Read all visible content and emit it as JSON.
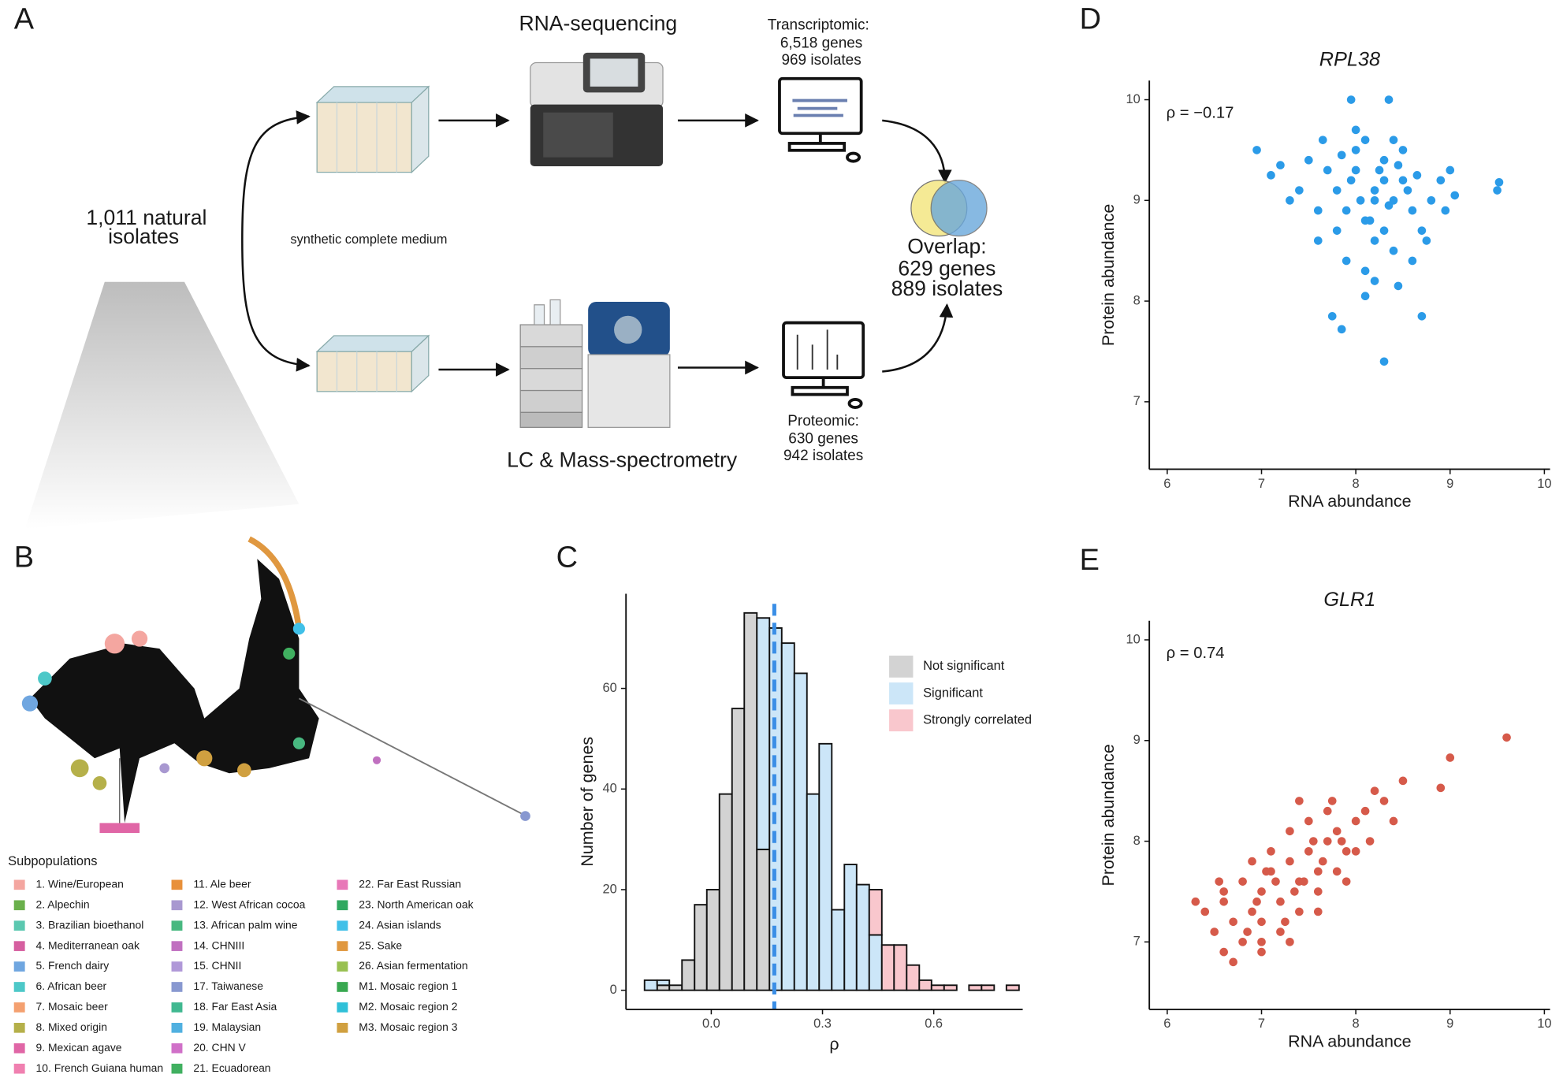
{
  "panels": [
    "A",
    "B",
    "C",
    "D",
    "E"
  ],
  "workflow": {
    "rna_title": "RNA-sequencing",
    "transcriptomic": [
      "Transcriptomic:",
      "6,518 genes",
      "969 isolates"
    ],
    "isolates": [
      "1,011 natural",
      "isolates"
    ],
    "medium": "synthetic complete medium",
    "overlap": [
      "Overlap:",
      "629 genes",
      "889 isolates"
    ],
    "ms_title": "LC & Mass-spectrometry",
    "proteomic": [
      "Proteomic:",
      "630 genes",
      "942 isolates"
    ]
  },
  "tree_legend": {
    "title": "Subpopulations",
    "items": [
      {
        "label": "1. Wine/European",
        "color": "#f4a6a0"
      },
      {
        "label": "2. Alpechin",
        "color": "#6ab04c"
      },
      {
        "label": "3. Brazilian bioethanol",
        "color": "#5bc8b0"
      },
      {
        "label": "4. Mediterranean oak",
        "color": "#d65fa0"
      },
      {
        "label": "5. French dairy",
        "color": "#6fa6e0"
      },
      {
        "label": "6. African beer",
        "color": "#4dc8c8"
      },
      {
        "label": "7. Mosaic beer",
        "color": "#f4a070"
      },
      {
        "label": "8. Mixed origin",
        "color": "#b5b04a"
      },
      {
        "label": "9. Mexican agave",
        "color": "#e066a6"
      },
      {
        "label": "10. French Guiana human",
        "color": "#f080b0"
      },
      {
        "label": "11. Ale beer",
        "color": "#e8903a"
      },
      {
        "label": "12. West African cocoa",
        "color": "#a898d0"
      },
      {
        "label": "13. African palm wine",
        "color": "#48b880"
      },
      {
        "label": "14. CHNIII",
        "color": "#c070c0"
      },
      {
        "label": "15. CHNII",
        "color": "#b098d8"
      },
      {
        "label": "17. Taiwanese",
        "color": "#8898d0"
      },
      {
        "label": "18. Far East Asia",
        "color": "#40b890"
      },
      {
        "label": "19. Malaysian",
        "color": "#50b0e0"
      },
      {
        "label": "20. CHN V",
        "color": "#d070c8"
      },
      {
        "label": "21. Ecuadorean",
        "color": "#40b060"
      },
      {
        "label": "22. Far East Russian",
        "color": "#e878b8"
      },
      {
        "label": "23. North American oak",
        "color": "#30a860"
      },
      {
        "label": "24. Asian islands",
        "color": "#40c0e8"
      },
      {
        "label": "25. Sake",
        "color": "#e09840"
      },
      {
        "label": "26. Asian fermentation",
        "color": "#98c050"
      },
      {
        "label": "M1. Mosaic region 1",
        "color": "#38a850"
      },
      {
        "label": "M2. Mosaic region 2",
        "color": "#30c0d8"
      },
      {
        "label": "M3. Mosaic region 3",
        "color": "#d0a040"
      }
    ]
  },
  "chart_data": [
    {
      "type": "histogram",
      "xlabel": "ρ",
      "ylabel": "Number of genes",
      "bins": [
        -0.18,
        -0.146,
        -0.113,
        -0.079,
        -0.045,
        -0.012,
        0.022,
        0.056,
        0.089,
        0.123,
        0.157,
        0.19,
        0.224,
        0.258,
        0.291,
        0.325,
        0.359,
        0.392,
        0.426,
        0.46,
        0.493,
        0.527,
        0.561,
        0.594,
        0.628,
        0.662,
        0.695,
        0.729,
        0.763,
        0.796,
        0.83
      ],
      "series": [
        {
          "name": "Not significant",
          "color": "#d3d3d3",
          "values": [
            0,
            1,
            1,
            6,
            17,
            20,
            39,
            56,
            75,
            28,
            0,
            0,
            0,
            0,
            0,
            0,
            0,
            0,
            0,
            0,
            0,
            0,
            0,
            0,
            0,
            0,
            0,
            0,
            0,
            0
          ]
        },
        {
          "name": "Significant",
          "color": "#cce6f8",
          "values": [
            2,
            1,
            0,
            0,
            0,
            0,
            0,
            0,
            0,
            46,
            72,
            69,
            63,
            39,
            49,
            16,
            25,
            21,
            11,
            0,
            0,
            0,
            0,
            0,
            0,
            0,
            0,
            0,
            0,
            0
          ]
        },
        {
          "name": "Strongly correlated",
          "color": "#f9c7cd",
          "values": [
            0,
            0,
            0,
            0,
            0,
            0,
            0,
            0,
            0,
            0,
            0,
            0,
            0,
            0,
            0,
            0,
            0,
            0,
            9,
            9,
            9,
            5,
            2,
            1,
            1,
            0,
            1,
            1,
            0,
            1
          ]
        }
      ],
      "vline": 0.17,
      "vline_color": "#3a8ee6",
      "xlim": [
        -0.23,
        0.84
      ],
      "ylim": [
        -3.8,
        78.8
      ],
      "xticks": [
        {
          "value": 0,
          "label": "0.0"
        },
        {
          "value": 0.3,
          "label": "0.3"
        },
        {
          "value": 0.6,
          "label": "0.6"
        }
      ],
      "yticks": [
        0,
        20,
        40,
        60
      ],
      "legend": "right"
    },
    {
      "type": "scatter",
      "title": "RPL38",
      "annotation": "ρ = −0.17",
      "xlabel": "RNA abundance",
      "ylabel": "Protein abundance",
      "color": "#2b9be8",
      "x": [
        8.2,
        8.0,
        8.4,
        7.9,
        8.3,
        8.1,
        8.5,
        7.8,
        8.6,
        8.2,
        7.7,
        8.8,
        8.0,
        8.3,
        7.6,
        8.9,
        8.1,
        8.4,
        7.5,
        8.7,
        8.2,
        7.9,
        8.5,
        8.0,
        8.3,
        7.4,
        9.0,
        8.6,
        7.8,
        8.1,
        8.4,
        8.2,
        7.3,
        8.95,
        8.05,
        8.55,
        7.65,
        8.25,
        8.75,
        7.95,
        8.15,
        8.45,
        7.85,
        8.35,
        8.65,
        9.5,
        9.52,
        8.3,
        7.75,
        7.85,
        8.7,
        7.95,
        8.35,
        7.1,
        6.95,
        7.2,
        9.05,
        8.1,
        8.45,
        7.6
      ],
      "y": [
        9.1,
        9.3,
        9.0,
        8.9,
        9.4,
        8.8,
        9.2,
        9.1,
        8.9,
        8.6,
        9.3,
        9.0,
        9.5,
        8.7,
        8.9,
        9.2,
        9.6,
        8.5,
        9.4,
        8.7,
        9.0,
        8.4,
        9.5,
        9.7,
        9.2,
        9.1,
        9.3,
        8.4,
        8.7,
        8.3,
        9.6,
        8.2,
        9.0,
        8.9,
        9.0,
        9.1,
        9.6,
        9.3,
        8.6,
        9.2,
        8.8,
        9.35,
        9.45,
        8.95,
        9.25,
        9.1,
        9.18,
        7.4,
        7.85,
        7.72,
        7.85,
        10.0,
        10.0,
        9.25,
        9.5,
        9.35,
        9.05,
        8.05,
        8.15,
        8.6
      ],
      "xlim": [
        5.81,
        10.06
      ],
      "ylim": [
        6.33,
        10.19
      ],
      "xticks": [
        6,
        7,
        8,
        9,
        10
      ],
      "yticks": [
        7,
        8,
        9,
        10
      ]
    },
    {
      "type": "scatter",
      "title": "GLR1",
      "annotation": "ρ = 0.74",
      "xlabel": "RNA abundance",
      "ylabel": "Protein abundance",
      "color": "#d65a4a",
      "x": [
        6.3,
        6.5,
        6.6,
        6.7,
        6.8,
        6.9,
        7.0,
        7.0,
        7.1,
        7.2,
        7.3,
        7.4,
        7.5,
        7.6,
        7.7,
        7.8,
        7.9,
        8.0,
        8.1,
        8.2,
        6.6,
        6.8,
        7.0,
        7.2,
        7.4,
        7.6,
        7.8,
        8.0,
        6.9,
        7.1,
        7.3,
        7.5,
        7.7,
        6.7,
        7.0,
        7.3,
        7.6,
        7.9,
        8.3,
        8.4,
        8.5,
        6.4,
        6.55,
        7.35,
        7.65,
        9.6,
        9.0,
        8.9,
        7.15,
        7.45,
        7.25,
        6.95,
        7.55,
        7.85,
        6.85,
        7.05,
        7.75,
        6.6,
        7.4,
        8.15
      ],
      "y": [
        7.4,
        7.1,
        7.5,
        7.2,
        7.6,
        7.3,
        7.5,
        7.0,
        7.7,
        7.4,
        7.8,
        7.6,
        7.9,
        7.7,
        8.0,
        8.1,
        7.9,
        8.2,
        8.3,
        8.5,
        6.9,
        7.0,
        7.2,
        7.1,
        7.3,
        7.5,
        7.7,
        7.9,
        7.8,
        7.9,
        8.1,
        8.2,
        8.3,
        6.8,
        6.9,
        7.0,
        7.3,
        7.6,
        8.4,
        8.2,
        8.6,
        7.3,
        7.6,
        7.5,
        7.8,
        9.03,
        8.83,
        8.53,
        7.6,
        7.6,
        7.2,
        7.4,
        8.0,
        8.0,
        7.1,
        7.7,
        8.4,
        7.4,
        8.4,
        8.0
      ],
      "xlim": [
        5.81,
        10.06
      ],
      "ylim": [
        6.33,
        10.19
      ],
      "xticks": [
        6,
        7,
        8,
        9,
        10
      ],
      "yticks": [
        7,
        8,
        9,
        10
      ]
    }
  ]
}
